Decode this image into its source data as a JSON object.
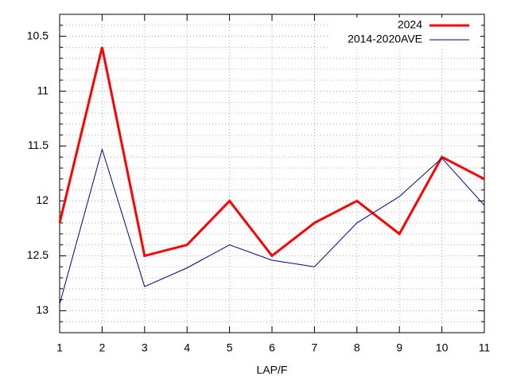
{
  "chart_data": {
    "type": "line",
    "xlabel": "LAP/F",
    "x": [
      1,
      2,
      3,
      4,
      5,
      6,
      7,
      8,
      9,
      10,
      11
    ],
    "series": [
      {
        "name": "2024",
        "color": "#ff0000",
        "values": [
          12.2,
          10.6,
          12.5,
          12.4,
          12.0,
          12.5,
          12.2,
          12.0,
          12.3,
          11.6,
          11.8
        ]
      },
      {
        "name": "2014-2020AVE",
        "color": "#00008b",
        "values": [
          12.94,
          11.53,
          12.78,
          12.61,
          12.4,
          12.54,
          12.6,
          12.2,
          11.96,
          11.61,
          12.04
        ]
      }
    ],
    "xlim": [
      1,
      11
    ],
    "xticks": [
      1,
      2,
      3,
      4,
      5,
      6,
      7,
      8,
      9,
      10,
      11
    ],
    "ylim": [
      10.3,
      13.2
    ],
    "y_reversed": true,
    "yticks": [
      10.5,
      11,
      11.5,
      12,
      12.5,
      13
    ],
    "yminor": 5,
    "grid": true,
    "legend": "top-right"
  }
}
